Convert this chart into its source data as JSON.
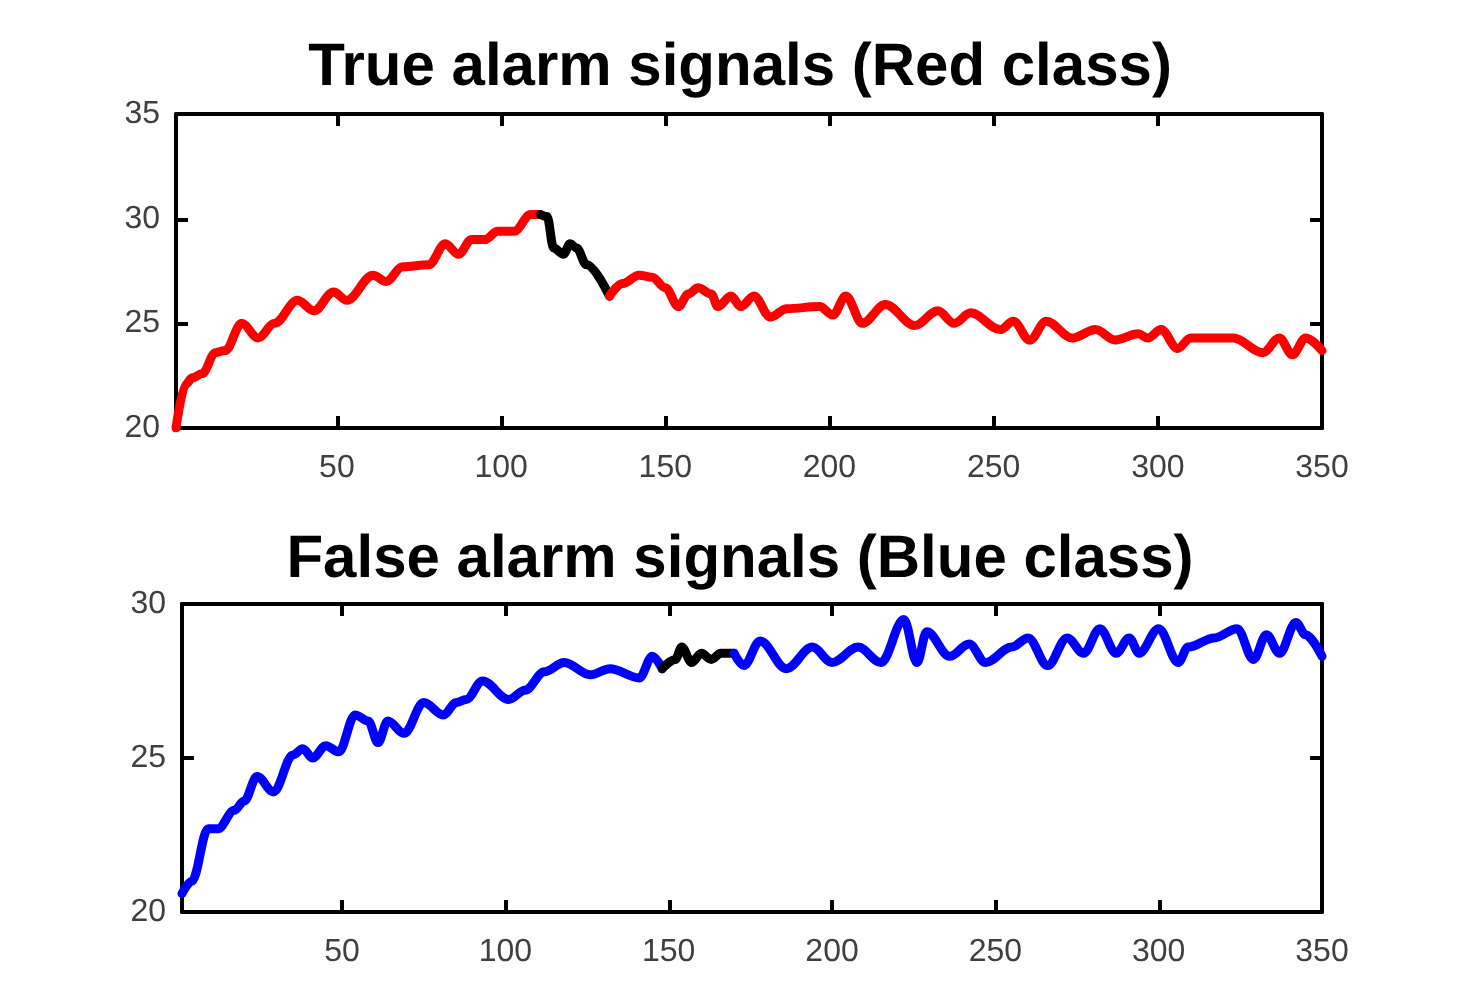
{
  "chart_data": [
    {
      "type": "line",
      "title": "True alarm signals (Red class)",
      "xlim": [
        1,
        350
      ],
      "xticks": [
        50,
        100,
        150,
        200,
        250,
        300,
        350
      ],
      "ylim": [
        20,
        35
      ],
      "yticks": [
        20,
        25,
        30,
        35
      ],
      "grid": false,
      "marker": "none",
      "line_style": "solid",
      "series": [
        {
          "color": "#ff0000",
          "x": [
            1,
            4,
            6,
            9,
            13,
            16,
            21,
            26,
            31,
            38,
            43,
            49,
            53,
            61,
            65,
            70,
            78,
            83,
            87,
            91,
            95,
            99,
            104,
            109,
            112
          ],
          "values": [
            20.0,
            22.1,
            22.4,
            22.6,
            23.6,
            23.7,
            25.0,
            24.3,
            25.0,
            26.1,
            25.6,
            26.5,
            26.1,
            27.3,
            27.0,
            27.7,
            27.8,
            28.8,
            28.3,
            29.0,
            29.0,
            29.4,
            29.4,
            30.2,
            30.2
          ]
        },
        {
          "color": "#000000",
          "x": [
            112,
            114,
            116,
            119,
            121,
            123,
            126,
            133
          ],
          "values": [
            30.2,
            30.1,
            28.6,
            28.3,
            28.8,
            28.6,
            27.8,
            26.3
          ]
        },
        {
          "color": "#ff0000",
          "x": [
            133,
            137,
            142,
            146,
            150,
            154,
            157,
            160,
            164,
            166,
            170,
            173,
            177,
            182,
            187,
            197,
            201,
            205,
            210,
            217,
            226,
            233,
            238,
            243,
            252,
            256,
            261,
            266,
            274,
            281,
            287,
            294,
            297,
            301,
            306,
            310,
            323,
            332,
            337,
            341,
            345,
            350
          ],
          "values": [
            26.3,
            26.9,
            27.3,
            27.2,
            26.7,
            25.8,
            26.4,
            26.7,
            26.4,
            25.8,
            26.3,
            25.8,
            26.3,
            25.3,
            25.7,
            25.8,
            25.4,
            26.3,
            25.0,
            25.9,
            24.9,
            25.6,
            25.0,
            25.5,
            24.7,
            25.1,
            24.2,
            25.1,
            24.3,
            24.7,
            24.2,
            24.5,
            24.3,
            24.7,
            23.8,
            24.3,
            24.3,
            23.6,
            24.3,
            23.5,
            24.3,
            23.7
          ]
        }
      ]
    },
    {
      "type": "line",
      "title": "False alarm signals (Blue class)",
      "xlim": [
        1,
        350
      ],
      "xticks": [
        50,
        100,
        150,
        200,
        250,
        300,
        350
      ],
      "ylim": [
        20,
        30
      ],
      "yticks": [
        20,
        25,
        30
      ],
      "grid": false,
      "marker": "none",
      "line_style": "solid",
      "series": [
        {
          "color": "#0000ff",
          "x": [
            1,
            4,
            9,
            12,
            17,
            20,
            24,
            29,
            35,
            38,
            41,
            45,
            49,
            54,
            58,
            61,
            64,
            69,
            75,
            81,
            85,
            88,
            93,
            101,
            106,
            112,
            118,
            126,
            132,
            141,
            145,
            148
          ],
          "values": [
            20.6,
            21.0,
            22.7,
            22.7,
            23.3,
            23.6,
            24.4,
            23.9,
            25.1,
            25.3,
            25.0,
            25.4,
            25.2,
            26.4,
            26.2,
            25.5,
            26.2,
            25.8,
            26.8,
            26.4,
            26.8,
            26.9,
            27.5,
            26.9,
            27.2,
            27.8,
            28.1,
            27.7,
            27.9,
            27.6,
            28.3,
            27.9
          ]
        },
        {
          "color": "#000000",
          "x": [
            148,
            152,
            154,
            157,
            160,
            163,
            166,
            170
          ],
          "values": [
            27.9,
            28.2,
            28.6,
            28.1,
            28.4,
            28.2,
            28.4,
            28.4
          ]
        },
        {
          "color": "#0000ff",
          "x": [
            170,
            173,
            178,
            186,
            194,
            200,
            208,
            215,
            222,
            226,
            229,
            236,
            242,
            247,
            255,
            260,
            266,
            272,
            277,
            282,
            287,
            291,
            294,
            300,
            306,
            309,
            317,
            324,
            329,
            333,
            337,
            342,
            345,
            350
          ],
          "values": [
            28.4,
            28.0,
            28.8,
            27.9,
            28.6,
            28.1,
            28.6,
            28.1,
            29.5,
            28.1,
            29.1,
            28.3,
            28.7,
            28.1,
            28.6,
            28.9,
            28.0,
            28.9,
            28.4,
            29.2,
            28.4,
            28.9,
            28.4,
            29.2,
            28.1,
            28.6,
            28.9,
            29.2,
            28.2,
            29.0,
            28.4,
            29.4,
            29.0,
            28.3
          ]
        }
      ]
    }
  ]
}
